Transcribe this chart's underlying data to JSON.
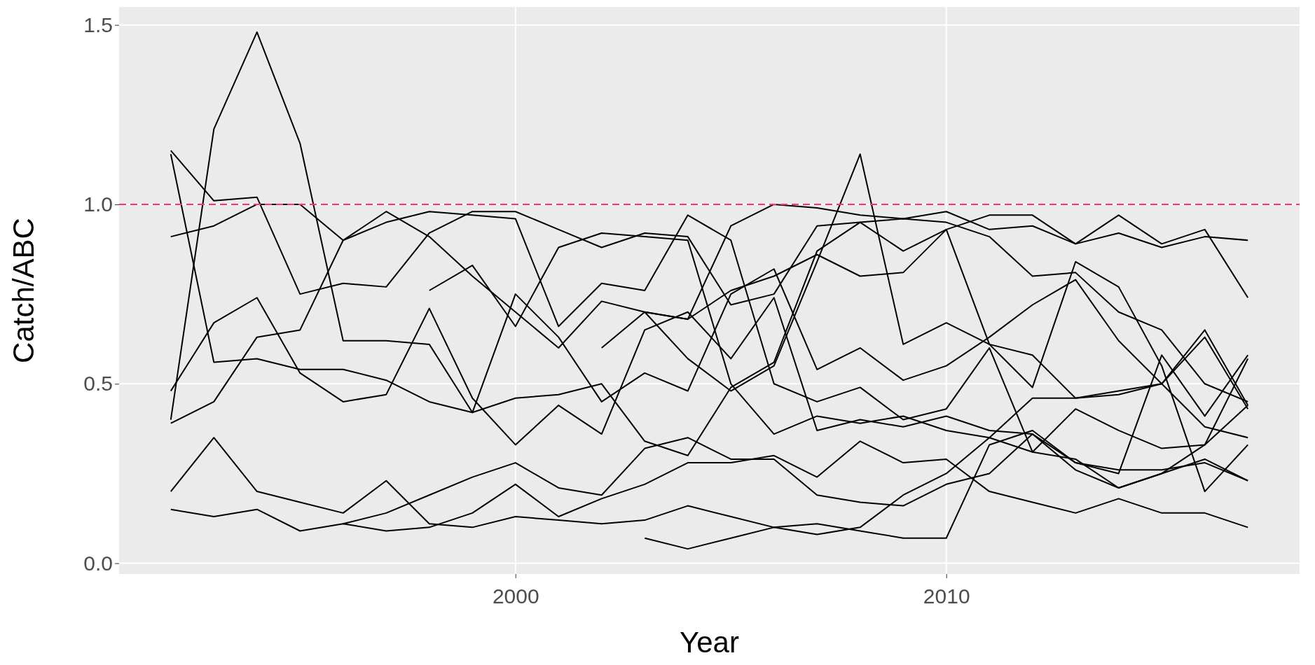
{
  "chart_data": {
    "type": "line",
    "xlabel": "Year",
    "ylabel": "Catch/ABC",
    "xlim": [
      1990.8,
      2018.2
    ],
    "xticks": [
      2000,
      2010
    ],
    "ylim": [
      -0.03,
      1.55
    ],
    "yticks": [
      {
        "value": 0,
        "label": "0.0"
      },
      {
        "value": 0.5,
        "label": "0.5"
      },
      {
        "value": 1,
        "label": "1.0"
      },
      {
        "value": 1.5,
        "label": "1.5"
      }
    ],
    "grid": true,
    "line_style": "solid",
    "marker": "none",
    "ref_lines": [
      {
        "axis": "y",
        "value": 1,
        "label": null,
        "color": "#ff3366",
        "line_style": "dashed"
      }
    ],
    "series": [
      {
        "color": "#000000",
        "x": [
          1992,
          1993,
          1994,
          1995,
          1996,
          1997,
          1998,
          1999,
          2000,
          2001,
          2002,
          2003,
          2004,
          2005,
          2006,
          2007,
          2008,
          2009,
          2010,
          2011,
          2012,
          2013,
          2014,
          2015,
          2016,
          2017
        ],
        "values": [
          0.4,
          1.21,
          1.48,
          1.17,
          0.62,
          0.62,
          0.61,
          0.42,
          0.75,
          0.63,
          0.45,
          0.53,
          0.48,
          0.75,
          0.82,
          0.54,
          0.6,
          0.51,
          0.55,
          0.63,
          0.72,
          0.79,
          0.62,
          0.5,
          0.38,
          0.35
        ]
      },
      {
        "color": "#000000",
        "x": [
          1992,
          1993,
          1994,
          1995,
          1996,
          1997,
          1998,
          1999,
          2000,
          2001,
          2002,
          2003,
          2004,
          2005,
          2006,
          2007,
          2008,
          2009,
          2010,
          2011,
          2012,
          2013,
          2014,
          2015,
          2016,
          2017
        ],
        "values": [
          1.15,
          1.01,
          1.02,
          0.75,
          0.78,
          0.77,
          0.92,
          0.98,
          0.98,
          0.93,
          0.88,
          0.92,
          0.91,
          0.72,
          0.75,
          0.94,
          0.95,
          0.87,
          0.93,
          0.97,
          0.97,
          0.89,
          0.97,
          0.89,
          0.93,
          0.74
        ]
      },
      {
        "color": "#000000",
        "x": [
          1992,
          1993,
          1994,
          1995,
          1996,
          1997,
          1998,
          1999,
          2000,
          2001,
          2002,
          2003,
          2004,
          2005,
          2006,
          2007,
          2008,
          2009,
          2010,
          2011,
          2012,
          2013,
          2014,
          2015,
          2016,
          2017
        ],
        "values": [
          0.91,
          0.94,
          1.0,
          1.0,
          0.9,
          0.95,
          0.98,
          0.97,
          0.96,
          0.66,
          0.78,
          0.76,
          0.97,
          0.9,
          0.5,
          0.45,
          0.49,
          0.4,
          0.43,
          0.6,
          0.31,
          0.29,
          0.21,
          0.25,
          0.29,
          0.23
        ]
      },
      {
        "color": "#000000",
        "x": [
          1992,
          1993,
          1994,
          1995,
          1996,
          1997,
          1998,
          1999,
          2000,
          2001,
          2002,
          2003,
          2004,
          2005,
          2006,
          2007,
          2008,
          2009,
          2010,
          2011,
          2012,
          2013,
          2014,
          2015,
          2016,
          2017
        ],
        "values": [
          1.14,
          0.56,
          0.57,
          0.54,
          0.54,
          0.51,
          0.45,
          0.42,
          0.46,
          0.47,
          0.5,
          0.34,
          0.3,
          0.49,
          0.56,
          0.87,
          0.95,
          0.96,
          0.95,
          0.91,
          0.8,
          0.81,
          0.7,
          0.65,
          0.5,
          0.45
        ]
      },
      {
        "color": "#000000",
        "x": [
          1992,
          1993,
          1994,
          1995,
          1996,
          1997,
          1998,
          1999,
          2000,
          2001,
          2002,
          2003,
          2004,
          2005,
          2006,
          2007,
          2008,
          2009,
          2010,
          2011,
          2012,
          2013,
          2014,
          2015,
          2016,
          2017
        ],
        "values": [
          0.48,
          0.67,
          0.74,
          0.53,
          0.45,
          0.47,
          0.71,
          0.46,
          0.33,
          0.44,
          0.36,
          0.65,
          0.7,
          0.57,
          0.74,
          0.37,
          0.4,
          0.38,
          0.41,
          0.37,
          0.36,
          0.28,
          0.25,
          0.58,
          0.41,
          0.58
        ]
      },
      {
        "color": "#000000",
        "x": [
          1992,
          1993,
          1994,
          1995,
          1996,
          1997,
          1998,
          1999,
          2000,
          2001,
          2002,
          2003,
          2004,
          2005,
          2006,
          2007,
          2008,
          2009,
          2010,
          2011,
          2012,
          2013,
          2014,
          2015,
          2016,
          2017
        ],
        "values": [
          0.39,
          0.45,
          0.63,
          0.65,
          0.9,
          0.98,
          0.91,
          0.8,
          0.7,
          0.6,
          0.73,
          0.7,
          0.68,
          0.76,
          0.8,
          0.86,
          0.8,
          0.81,
          0.93,
          0.61,
          0.58,
          0.46,
          0.47,
          0.5,
          0.65,
          0.44
        ]
      },
      {
        "color": "#000000",
        "x": [
          1992,
          1993,
          1994,
          1995,
          1996,
          1997,
          1998,
          1999,
          2000,
          2001,
          2002,
          2003,
          2004,
          2005,
          2006,
          2007,
          2008,
          2009,
          2010,
          2011,
          2012,
          2013,
          2014,
          2015,
          2016,
          2017
        ],
        "values": [
          0.2,
          0.35,
          0.2,
          0.17,
          0.14,
          0.23,
          0.11,
          0.1,
          0.13,
          0.12,
          0.11,
          0.12,
          0.16,
          0.13,
          0.1,
          0.11,
          0.09,
          0.07,
          0.07,
          0.33,
          0.37,
          0.28,
          0.26,
          0.26,
          0.28,
          0.23
        ]
      },
      {
        "color": "#000000",
        "x": [
          1992,
          1993,
          1994,
          1995,
          1996,
          1997,
          1998,
          1999,
          2000,
          2001,
          2002,
          2003,
          2004,
          2005,
          2006,
          2007,
          2008,
          2009,
          2010,
          2011,
          2012,
          2013,
          2014,
          2015,
          2016,
          2017
        ],
        "values": [
          0.15,
          0.13,
          0.15,
          0.09,
          0.11,
          0.09,
          0.1,
          0.14,
          0.22,
          0.13,
          0.18,
          0.22,
          0.28,
          0.28,
          0.3,
          0.24,
          0.34,
          0.28,
          0.29,
          0.2,
          0.17,
          0.14,
          0.18,
          0.14,
          0.14,
          0.1
        ]
      },
      {
        "color": "#000000",
        "x": [
          1996,
          1997,
          1998,
          1999,
          2000,
          2001,
          2002,
          2003,
          2004,
          2005,
          2006,
          2007,
          2008,
          2009,
          2010,
          2011,
          2012,
          2013,
          2014,
          2015,
          2016,
          2017
        ],
        "values": [
          0.11,
          0.14,
          0.19,
          0.24,
          0.28,
          0.21,
          0.19,
          0.32,
          0.35,
          0.29,
          0.29,
          0.19,
          0.17,
          0.16,
          0.22,
          0.25,
          0.36,
          0.26,
          0.21,
          0.25,
          0.33,
          0.57
        ]
      },
      {
        "color": "#000000",
        "x": [
          1998,
          1999,
          2000,
          2001,
          2002,
          2003,
          2004,
          2005,
          2006,
          2007,
          2008,
          2009,
          2010,
          2011,
          2012,
          2013,
          2014,
          2015,
          2016,
          2017
        ],
        "values": [
          0.76,
          0.83,
          0.66,
          0.88,
          0.92,
          0.91,
          0.9,
          0.5,
          0.36,
          0.41,
          0.39,
          0.41,
          0.37,
          0.35,
          0.31,
          0.43,
          0.37,
          0.32,
          0.33,
          0.44
        ]
      },
      {
        "color": "#000000",
        "x": [
          2002,
          2003,
          2004,
          2005,
          2006,
          2007,
          2008,
          2009,
          2010,
          2011,
          2012,
          2013,
          2014,
          2015,
          2016,
          2017
        ],
        "values": [
          0.6,
          0.7,
          0.68,
          0.94,
          1.0,
          0.99,
          0.97,
          0.96,
          0.98,
          0.93,
          0.94,
          0.89,
          0.92,
          0.88,
          0.91,
          0.9
        ]
      },
      {
        "color": "#000000",
        "x": [
          2003,
          2004,
          2005,
          2006,
          2007,
          2008,
          2009,
          2010,
          2011,
          2012,
          2013,
          2014,
          2015,
          2016,
          2017
        ],
        "values": [
          0.07,
          0.04,
          0.07,
          0.1,
          0.08,
          0.1,
          0.19,
          0.25,
          0.35,
          0.46,
          0.46,
          0.48,
          0.5,
          0.63,
          0.43
        ]
      },
      {
        "color": "#000000",
        "x": [
          2003,
          2004,
          2005,
          2006,
          2007,
          2008,
          2009,
          2010,
          2011,
          2012,
          2013,
          2014,
          2015,
          2016,
          2017
        ],
        "values": [
          0.7,
          0.57,
          0.48,
          0.55,
          0.84,
          1.14,
          0.61,
          0.67,
          0.61,
          0.49,
          0.84,
          0.77,
          0.55,
          0.2,
          0.33
        ]
      }
    ]
  }
}
